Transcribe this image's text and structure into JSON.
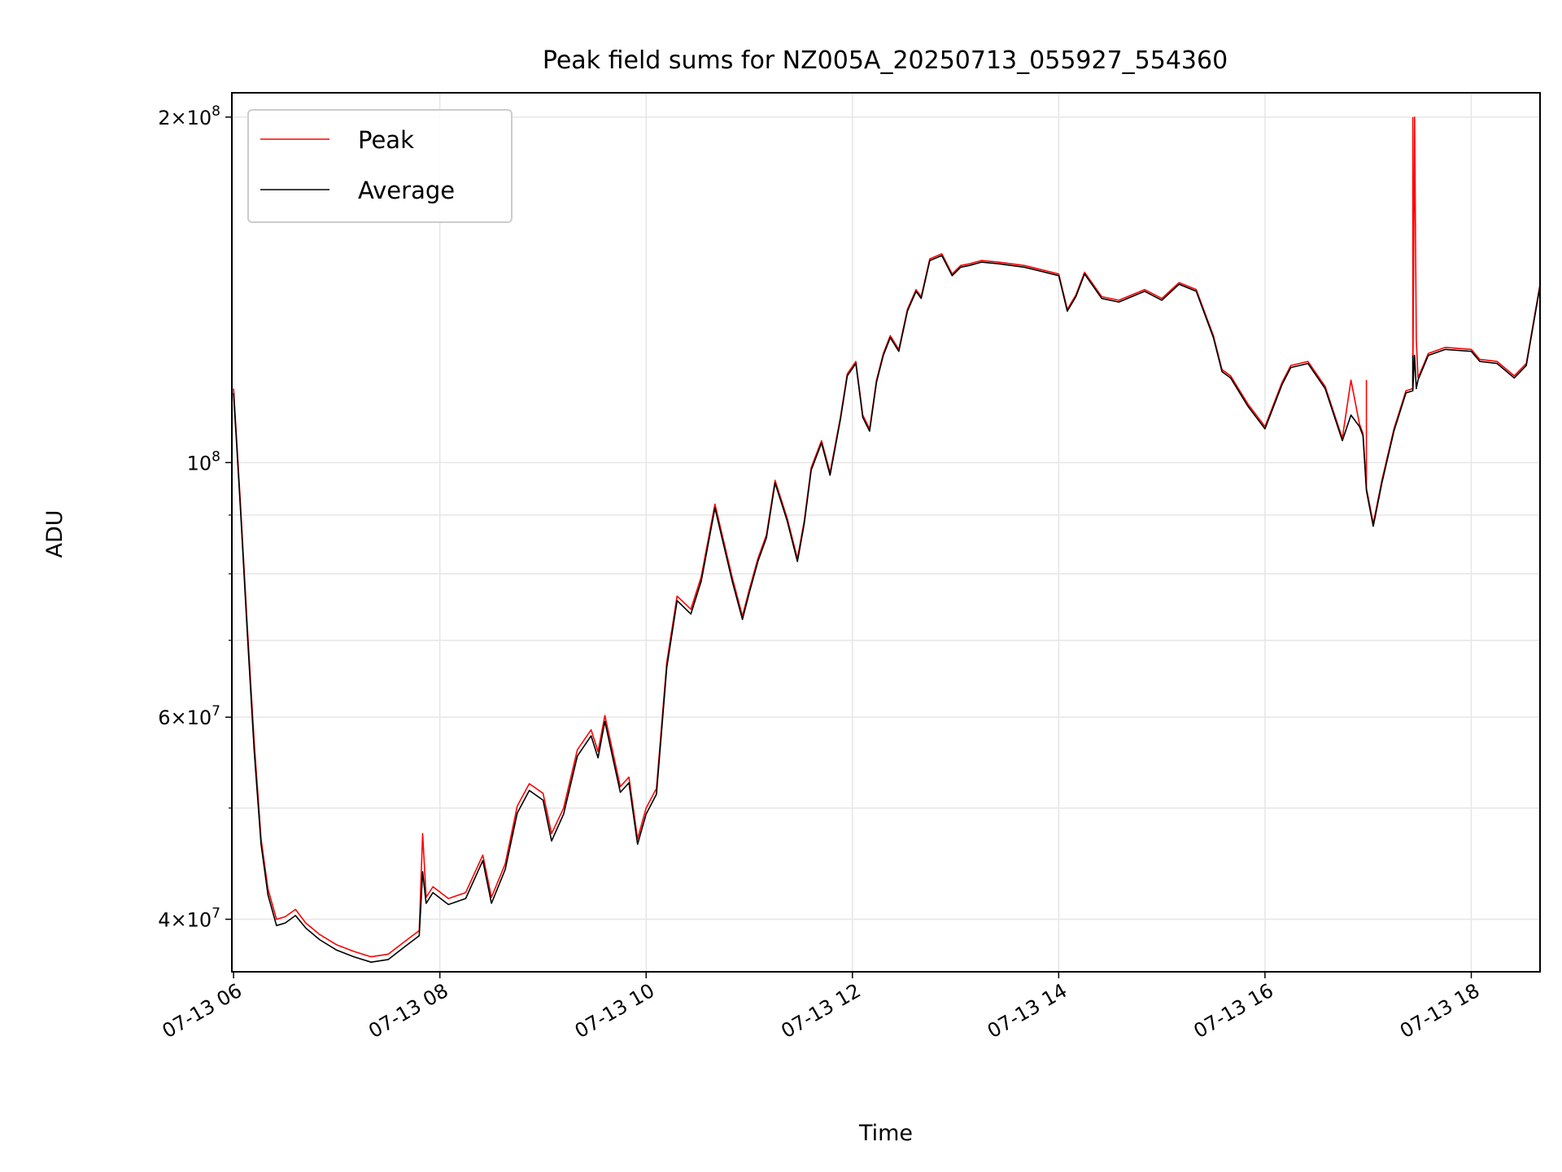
{
  "chart_data": {
    "type": "line",
    "title": "Peak field sums for NZ005A_20250713_055927_554360",
    "xlabel": "Time",
    "ylabel": "ADU",
    "x_scale": "time",
    "y_scale": "log",
    "xlim": [
      "2025-07-13 05:59",
      "2025-07-13 18:40"
    ],
    "ylim": [
      36000000,
      210000000
    ],
    "x_ticks": [
      {
        "t": "2025-07-13 06:00",
        "label": "07-13 06"
      },
      {
        "t": "2025-07-13 08:00",
        "label": "07-13 08"
      },
      {
        "t": "2025-07-13 10:00",
        "label": "07-13 10"
      },
      {
        "t": "2025-07-13 12:00",
        "label": "07-13 12"
      },
      {
        "t": "2025-07-13 14:00",
        "label": "07-13 14"
      },
      {
        "t": "2025-07-13 16:00",
        "label": "07-13 16"
      },
      {
        "t": "2025-07-13 18:00",
        "label": "07-13 18"
      }
    ],
    "y_major_ticks": [
      {
        "value": 40000000,
        "mantissa": "4",
        "exp": "7"
      },
      {
        "value": 60000000,
        "mantissa": "6",
        "exp": "7"
      },
      {
        "value": 100000000,
        "mantissa": "",
        "exp": "8"
      },
      {
        "value": 200000000,
        "mantissa": "2",
        "exp": "8"
      }
    ],
    "y_minor_ticks": [
      50000000,
      70000000,
      80000000,
      90000000
    ],
    "grid": true,
    "legend": "upper-left",
    "series": [
      {
        "name": "Peak",
        "color": "#ff0000",
        "x": [
          "2025-07-13 06:00",
          "2025-07-13 06:04",
          "2025-07-13 06:08",
          "2025-07-13 06:12",
          "2025-07-13 06:16",
          "2025-07-13 06:20",
          "2025-07-13 06:25",
          "2025-07-13 06:30",
          "2025-07-13 06:36",
          "2025-07-13 06:42",
          "2025-07-13 06:50",
          "2025-07-13 07:00",
          "2025-07-13 07:10",
          "2025-07-13 07:20",
          "2025-07-13 07:30",
          "2025-07-13 07:40",
          "2025-07-13 07:48",
          "2025-07-13 07:50",
          "2025-07-13 07:52",
          "2025-07-13 07:56",
          "2025-07-13 08:05",
          "2025-07-13 08:15",
          "2025-07-13 08:25",
          "2025-07-13 08:30",
          "2025-07-13 08:38",
          "2025-07-13 08:45",
          "2025-07-13 08:52",
          "2025-07-13 09:00",
          "2025-07-13 09:05",
          "2025-07-13 09:12",
          "2025-07-13 09:20",
          "2025-07-13 09:28",
          "2025-07-13 09:32",
          "2025-07-13 09:36",
          "2025-07-13 09:40",
          "2025-07-13 09:45",
          "2025-07-13 09:50",
          "2025-07-13 09:55",
          "2025-07-13 10:00",
          "2025-07-13 10:06",
          "2025-07-13 10:12",
          "2025-07-13 10:18",
          "2025-07-13 10:26",
          "2025-07-13 10:32",
          "2025-07-13 10:40",
          "2025-07-13 10:50",
          "2025-07-13 10:56",
          "2025-07-13 11:00",
          "2025-07-13 11:05",
          "2025-07-13 11:10",
          "2025-07-13 11:15",
          "2025-07-13 11:22",
          "2025-07-13 11:28",
          "2025-07-13 11:32",
          "2025-07-13 11:36",
          "2025-07-13 11:42",
          "2025-07-13 11:47",
          "2025-07-13 11:53",
          "2025-07-13 11:57",
          "2025-07-13 12:02",
          "2025-07-13 12:06",
          "2025-07-13 12:10",
          "2025-07-13 12:14",
          "2025-07-13 12:18",
          "2025-07-13 12:22",
          "2025-07-13 12:27",
          "2025-07-13 12:32",
          "2025-07-13 12:37",
          "2025-07-13 12:40",
          "2025-07-13 12:45",
          "2025-07-13 12:52",
          "2025-07-13 12:58",
          "2025-07-13 13:03",
          "2025-07-13 13:08",
          "2025-07-13 13:15",
          "2025-07-13 13:25",
          "2025-07-13 13:40",
          "2025-07-13 14:00",
          "2025-07-13 14:05",
          "2025-07-13 14:10",
          "2025-07-13 14:15",
          "2025-07-13 14:20",
          "2025-07-13 14:25",
          "2025-07-13 14:35",
          "2025-07-13 14:50",
          "2025-07-13 15:00",
          "2025-07-13 15:10",
          "2025-07-13 15:20",
          "2025-07-13 15:30",
          "2025-07-13 15:35",
          "2025-07-13 15:40",
          "2025-07-13 15:50",
          "2025-07-13 16:00",
          "2025-07-13 16:10",
          "2025-07-13 16:15",
          "2025-07-13 16:25",
          "2025-07-13 16:35",
          "2025-07-13 16:45",
          "2025-07-13 16:50",
          "2025-07-13 16:55",
          "2025-07-13 16:57",
          "2025-07-13 16:59",
          "2025-07-13 17:03",
          "2025-07-13 17:08",
          "2025-07-13 17:15",
          "2025-07-13 17:22",
          "2025-07-13 17:26",
          "2025-07-13 17:27",
          "2025-07-13 17:28",
          "2025-07-13 17:29",
          "2025-07-13 17:35",
          "2025-07-13 17:45",
          "2025-07-13 18:00",
          "2025-07-13 18:05",
          "2025-07-13 18:15",
          "2025-07-13 18:25",
          "2025-07-13 18:32",
          "2025-07-13 18:40"
        ],
        "y": [
          116000000,
          92000000,
          72000000,
          57000000,
          47000000,
          42500000,
          40000000,
          40200000,
          40800000,
          39700000,
          38800000,
          38000000,
          37500000,
          37100000,
          37300000,
          38300000,
          39100000,
          47500000,
          41800000,
          42700000,
          41700000,
          42200000,
          45500000,
          41800000,
          44700000,
          50200000,
          52500000,
          51500000,
          47500000,
          50000000,
          56200000,
          58500000,
          56000000,
          60200000,
          56500000,
          52200000,
          53200000,
          47000000,
          50000000,
          52000000,
          67000000,
          76500000,
          74500000,
          79500000,
          92000000,
          79500000,
          73500000,
          77500000,
          82500000,
          86500000,
          96500000,
          89500000,
          82500000,
          89000000,
          99000000,
          104500000,
          98000000,
          109500000,
          119500000,
          122500000,
          110000000,
          107000000,
          118000000,
          124500000,
          129000000,
          125500000,
          136000000,
          141500000,
          139500000,
          150500000,
          152000000,
          146000000,
          148500000,
          149000000,
          150000000,
          149500000,
          148500000,
          146000000,
          136000000,
          140000000,
          146500000,
          143000000,
          139500000,
          138500000,
          141500000,
          139000000,
          143500000,
          141500000,
          129000000,
          120500000,
          119000000,
          112500000,
          107500000,
          117500000,
          121500000,
          122500000,
          116500000,
          105000000,
          118000000,
          108000000,
          106000000,
          95000000,
          88500000,
          96500000,
          107000000,
          115500000,
          116000000,
          200000000,
          128000000,
          118500000,
          124500000,
          126000000,
          125500000,
          123000000,
          122500000,
          119000000,
          122000000,
          143000000
        ],
        "spikes": [
          [
            "2025-07-13 16:59",
            118000000
          ],
          [
            "2025-07-13 17:26",
            200000000
          ],
          [
            "2025-07-13 07:50",
            47500000
          ]
        ]
      },
      {
        "name": "Average",
        "color": "#000000",
        "x": [
          "2025-07-13 06:00",
          "2025-07-13 06:04",
          "2025-07-13 06:08",
          "2025-07-13 06:12",
          "2025-07-13 06:16",
          "2025-07-13 06:20",
          "2025-07-13 06:25",
          "2025-07-13 06:30",
          "2025-07-13 06:36",
          "2025-07-13 06:42",
          "2025-07-13 06:50",
          "2025-07-13 07:00",
          "2025-07-13 07:10",
          "2025-07-13 07:20",
          "2025-07-13 07:30",
          "2025-07-13 07:40",
          "2025-07-13 07:48",
          "2025-07-13 07:50",
          "2025-07-13 07:52",
          "2025-07-13 07:56",
          "2025-07-13 08:05",
          "2025-07-13 08:15",
          "2025-07-13 08:25",
          "2025-07-13 08:30",
          "2025-07-13 08:38",
          "2025-07-13 08:45",
          "2025-07-13 08:52",
          "2025-07-13 09:00",
          "2025-07-13 09:05",
          "2025-07-13 09:12",
          "2025-07-13 09:20",
          "2025-07-13 09:28",
          "2025-07-13 09:32",
          "2025-07-13 09:36",
          "2025-07-13 09:40",
          "2025-07-13 09:45",
          "2025-07-13 09:50",
          "2025-07-13 09:55",
          "2025-07-13 10:00",
          "2025-07-13 10:06",
          "2025-07-13 10:12",
          "2025-07-13 10:18",
          "2025-07-13 10:26",
          "2025-07-13 10:32",
          "2025-07-13 10:40",
          "2025-07-13 10:50",
          "2025-07-13 10:56",
          "2025-07-13 11:00",
          "2025-07-13 11:05",
          "2025-07-13 11:10",
          "2025-07-13 11:15",
          "2025-07-13 11:22",
          "2025-07-13 11:28",
          "2025-07-13 11:32",
          "2025-07-13 11:36",
          "2025-07-13 11:42",
          "2025-07-13 11:47",
          "2025-07-13 11:53",
          "2025-07-13 11:57",
          "2025-07-13 12:02",
          "2025-07-13 12:06",
          "2025-07-13 12:10",
          "2025-07-13 12:14",
          "2025-07-13 12:18",
          "2025-07-13 12:22",
          "2025-07-13 12:27",
          "2025-07-13 12:32",
          "2025-07-13 12:37",
          "2025-07-13 12:40",
          "2025-07-13 12:45",
          "2025-07-13 12:52",
          "2025-07-13 12:58",
          "2025-07-13 13:03",
          "2025-07-13 13:08",
          "2025-07-13 13:15",
          "2025-07-13 13:25",
          "2025-07-13 13:40",
          "2025-07-13 14:00",
          "2025-07-13 14:05",
          "2025-07-13 14:10",
          "2025-07-13 14:15",
          "2025-07-13 14:20",
          "2025-07-13 14:25",
          "2025-07-13 14:35",
          "2025-07-13 14:50",
          "2025-07-13 15:00",
          "2025-07-13 15:10",
          "2025-07-13 15:20",
          "2025-07-13 15:30",
          "2025-07-13 15:35",
          "2025-07-13 15:40",
          "2025-07-13 15:50",
          "2025-07-13 16:00",
          "2025-07-13 16:10",
          "2025-07-13 16:15",
          "2025-07-13 16:25",
          "2025-07-13 16:35",
          "2025-07-13 16:45",
          "2025-07-13 16:50",
          "2025-07-13 16:55",
          "2025-07-13 16:57",
          "2025-07-13 16:59",
          "2025-07-13 17:03",
          "2025-07-13 17:08",
          "2025-07-13 17:15",
          "2025-07-13 17:22",
          "2025-07-13 17:26",
          "2025-07-13 17:27",
          "2025-07-13 17:28",
          "2025-07-13 17:29",
          "2025-07-13 17:35",
          "2025-07-13 17:45",
          "2025-07-13 18:00",
          "2025-07-13 18:05",
          "2025-07-13 18:15",
          "2025-07-13 18:25",
          "2025-07-13 18:32",
          "2025-07-13 18:40"
        ],
        "y": [
          115000000,
          91000000,
          71000000,
          56000000,
          46500000,
          42000000,
          39500000,
          39700000,
          40300000,
          39300000,
          38400000,
          37600000,
          37100000,
          36700000,
          36900000,
          37900000,
          38700000,
          44000000,
          41300000,
          42200000,
          41200000,
          41700000,
          45000000,
          41300000,
          44200000,
          49500000,
          51800000,
          50800000,
          46800000,
          49400000,
          55500000,
          57800000,
          55300000,
          59500000,
          55800000,
          51600000,
          52600000,
          46500000,
          49400000,
          51400000,
          66300000,
          75800000,
          73800000,
          78800000,
          91300000,
          78900000,
          73000000,
          77000000,
          82000000,
          86000000,
          96000000,
          89000000,
          82000000,
          88500000,
          98500000,
          104000000,
          97500000,
          109000000,
          119000000,
          122000000,
          109500000,
          106500000,
          117500000,
          124000000,
          128500000,
          125000000,
          135500000,
          141000000,
          139000000,
          150000000,
          151500000,
          145500000,
          148000000,
          148500000,
          149500000,
          149000000,
          148000000,
          145500000,
          135500000,
          139500000,
          146000000,
          142500000,
          139000000,
          138000000,
          141000000,
          138500000,
          143000000,
          141000000,
          128500000,
          120000000,
          118500000,
          112000000,
          107000000,
          117000000,
          121000000,
          122000000,
          116000000,
          104500000,
          110000000,
          107500000,
          105500000,
          94500000,
          88000000,
          96000000,
          106500000,
          115000000,
          115500000,
          124000000,
          116000000,
          118000000,
          124000000,
          125500000,
          125000000,
          122500000,
          122000000,
          118500000,
          121500000,
          142500000
        ],
        "spikes": [
          [
            "2025-07-13 17:26",
            124000000
          ]
        ]
      }
    ]
  }
}
